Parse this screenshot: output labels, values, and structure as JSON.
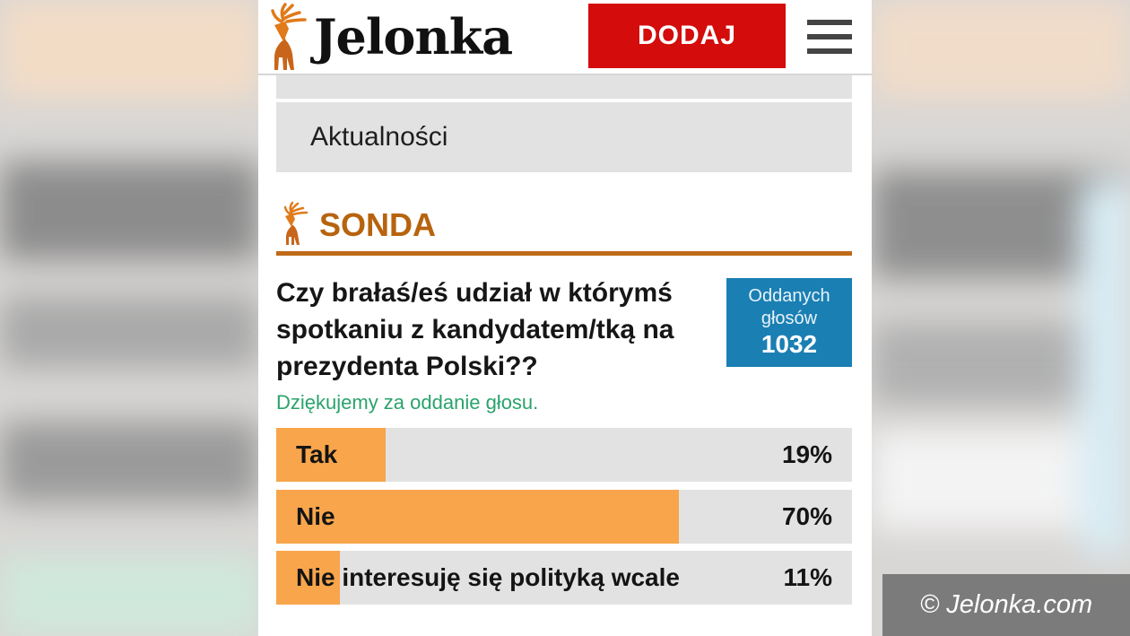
{
  "header": {
    "logo_text": "Jelonka",
    "add_button_label": "DODAJ"
  },
  "nav": {
    "items": [
      {
        "label": ""
      },
      {
        "label": "Aktualności"
      }
    ]
  },
  "poll": {
    "section_title": "SONDA",
    "question": "Czy brałaś/eś udział w którymś spotkaniu z kandydatem/tką na prezydenta Polski??",
    "votes_label": "Oddanych głosów",
    "votes_count": "1032",
    "thanks_message": "Dziękujemy za oddanie głosu.",
    "options": [
      {
        "label": "Tak",
        "percent_text": "19%",
        "percent": 19
      },
      {
        "label": "Nie",
        "percent_text": "70%",
        "percent": 70
      },
      {
        "label": "Nie interesuję się polityką wcale",
        "percent_text": "11%",
        "percent": 11
      }
    ]
  },
  "watermark": "© Jelonka.com",
  "colors": {
    "brand_red": "#d40c0c",
    "section_orange": "#b7630e",
    "votes_blue": "#1a7fb3",
    "bar_fill": "#f8a54c",
    "thanks_green": "#2aa36b"
  }
}
